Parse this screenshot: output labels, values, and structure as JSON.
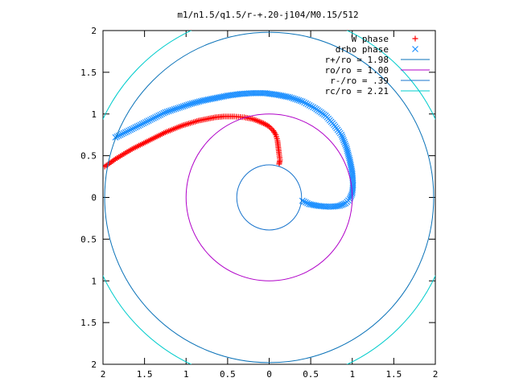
{
  "chart_data": {
    "type": "scatter",
    "title": "m1/n1.5/q1.5/r-+.20-j104/M0.15/512",
    "xlabel": "",
    "ylabel": "",
    "xlim": [
      -2,
      2
    ],
    "ylim": [
      -2,
      2
    ],
    "x_ticks": [
      {
        "value": -2,
        "label": "2"
      },
      {
        "value": -1.5,
        "label": "1.5"
      },
      {
        "value": -1,
        "label": "1"
      },
      {
        "value": -0.5,
        "label": "0.5"
      },
      {
        "value": 0,
        "label": "0"
      },
      {
        "value": 0.5,
        "label": "0.5"
      },
      {
        "value": 1,
        "label": "1"
      },
      {
        "value": 1.5,
        "label": "1.5"
      },
      {
        "value": 2,
        "label": "2"
      }
    ],
    "y_ticks": [
      {
        "value": 2,
        "label": "2"
      },
      {
        "value": 1.5,
        "label": "1.5"
      },
      {
        "value": 1,
        "label": "1"
      },
      {
        "value": 0.5,
        "label": "0.5"
      },
      {
        "value": 0,
        "label": "0"
      },
      {
        "value": -0.5,
        "label": "0.5"
      },
      {
        "value": -1,
        "label": "1"
      },
      {
        "value": -1.5,
        "label": "1.5"
      },
      {
        "value": -2,
        "label": "2"
      }
    ],
    "grid": false,
    "legend_position": "top-right",
    "series": [
      {
        "name": "W phase",
        "kind": "points",
        "marker": "+",
        "color": "#ff0000",
        "x": [
          0.12,
          0.13,
          0.12,
          0.11,
          0.1,
          0.08,
          0.05,
          0.0,
          -0.05,
          -0.12,
          -0.2,
          -0.3,
          -0.42,
          -0.55,
          -0.65,
          -0.75,
          -0.85,
          -0.95,
          -1.05,
          -1.15,
          -1.25,
          -1.35,
          -1.45,
          -1.55,
          -1.65,
          -1.75,
          -1.85,
          -1.92,
          -1.98
        ],
        "y": [
          0.4,
          0.45,
          0.52,
          0.6,
          0.68,
          0.75,
          0.8,
          0.85,
          0.88,
          0.91,
          0.94,
          0.96,
          0.97,
          0.97,
          0.96,
          0.94,
          0.92,
          0.89,
          0.86,
          0.82,
          0.78,
          0.73,
          0.68,
          0.63,
          0.58,
          0.52,
          0.46,
          0.41,
          0.37
        ]
      },
      {
        "name": "drho phase",
        "kind": "points",
        "marker": "x",
        "color": "#1e90ff",
        "x": [
          -1.85,
          -1.75,
          -1.65,
          -1.55,
          -1.45,
          -1.35,
          -1.25,
          -1.1,
          -0.95,
          -0.8,
          -0.65,
          -0.5,
          -0.35,
          -0.2,
          -0.05,
          0.1,
          0.25,
          0.4,
          0.55,
          0.68,
          0.78,
          0.87,
          0.93,
          0.97,
          1.0,
          1.01,
          1.0,
          0.97,
          0.92,
          0.85,
          0.77,
          0.68,
          0.58,
          0.48,
          0.4
        ],
        "y": [
          0.72,
          0.77,
          0.82,
          0.87,
          0.92,
          0.97,
          1.02,
          1.07,
          1.12,
          1.16,
          1.19,
          1.22,
          1.24,
          1.25,
          1.25,
          1.23,
          1.2,
          1.15,
          1.07,
          0.98,
          0.87,
          0.75,
          0.6,
          0.45,
          0.3,
          0.15,
          0.05,
          -0.02,
          -0.07,
          -0.1,
          -0.11,
          -0.11,
          -0.1,
          -0.08,
          -0.04
        ]
      },
      {
        "name": "r+/ro = 1.98",
        "kind": "circle",
        "radius": 1.98,
        "color": "#0a72b8"
      },
      {
        "name": "ro/ro = 1.00",
        "kind": "circle",
        "radius": 1.0,
        "color": "#b000c8"
      },
      {
        "name": "r-/ro = .39",
        "kind": "circle",
        "radius": 0.39,
        "color": "#1874cd"
      },
      {
        "name": "rc/ro = 2.21",
        "kind": "circle",
        "radius": 2.21,
        "color": "#00cccc"
      }
    ]
  }
}
